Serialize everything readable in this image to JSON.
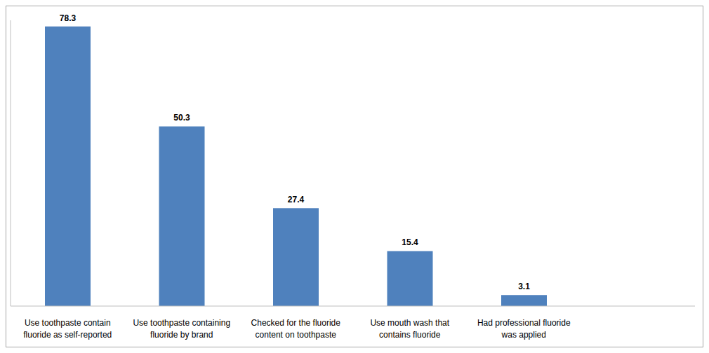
{
  "chart_data": {
    "type": "bar",
    "categories": [
      "Use toothpaste contain fluoride as self-reported",
      "Use toothpaste containing fluoride by brand",
      "Checked for the fluoride content on toothpaste",
      "Use mouth wash that contains fluoride",
      "Had professional fluoride was applied",
      null
    ],
    "values": [
      78.3,
      50.3,
      27.4,
      15.4,
      3.1,
      null
    ],
    "color": "#4f81bd",
    "ylim": [
      0,
      80
    ],
    "yticks": [],
    "grid": false,
    "data_labels": true,
    "tick_labels": "x"
  }
}
